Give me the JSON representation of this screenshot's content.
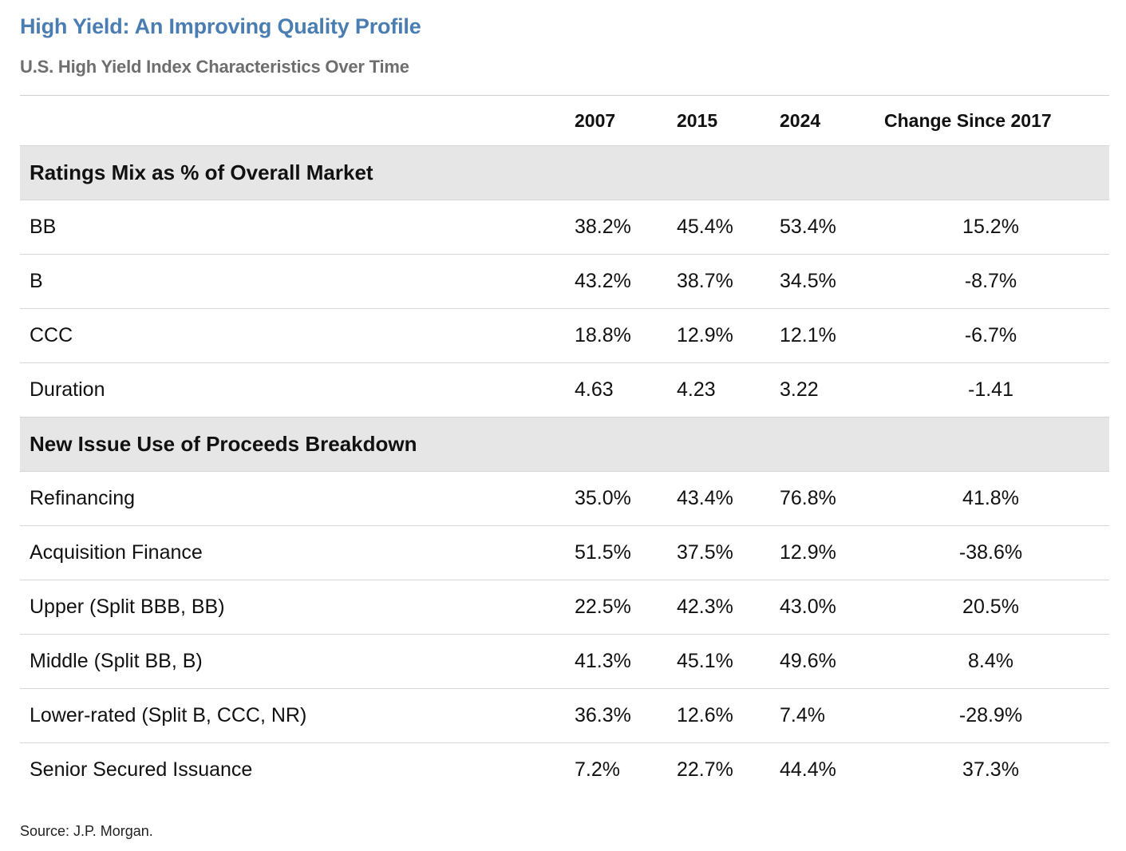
{
  "title": "High Yield: An Improving Quality Profile",
  "subtitle": "U.S. High Yield Index Characteristics Over Time",
  "source": "Source: J.P. Morgan.",
  "chart_data": {
    "type": "table",
    "columns": [
      "",
      "2007",
      "2015",
      "2024",
      "Change Since 2017"
    ],
    "sections": [
      {
        "title": "Ratings Mix as % of Overall Market",
        "rows": [
          {
            "label": "BB",
            "y2007": "38.2%",
            "y2015": "45.4%",
            "y2024": "53.4%",
            "change": "15.2%"
          },
          {
            "label": "B",
            "y2007": "43.2%",
            "y2015": "38.7%",
            "y2024": "34.5%",
            "change": "-8.7%"
          },
          {
            "label": "CCC",
            "y2007": "18.8%",
            "y2015": "12.9%",
            "y2024": "12.1%",
            "change": "-6.7%"
          },
          {
            "label": "Duration",
            "y2007": "4.63",
            "y2015": "4.23",
            "y2024": "3.22",
            "change": "-1.41"
          }
        ]
      },
      {
        "title": "New Issue Use of Proceeds Breakdown",
        "rows": [
          {
            "label": "Refinancing",
            "y2007": "35.0%",
            "y2015": "43.4%",
            "y2024": "76.8%",
            "change": "41.8%"
          },
          {
            "label": "Acquisition Finance",
            "y2007": "51.5%",
            "y2015": "37.5%",
            "y2024": "12.9%",
            "change": "-38.6%"
          },
          {
            "label": "Upper (Split BBB, BB)",
            "y2007": "22.5%",
            "y2015": "42.3%",
            "y2024": "43.0%",
            "change": "20.5%"
          },
          {
            "label": "Middle (Split BB, B)",
            "y2007": "41.3%",
            "y2015": "45.1%",
            "y2024": "49.6%",
            "change": "8.4%"
          },
          {
            "label": "Lower-rated (Split B, CCC, NR)",
            "y2007": "36.3%",
            "y2015": "12.6%",
            "y2024": "7.4%",
            "change": "-28.9%"
          },
          {
            "label": "Senior Secured Issuance",
            "y2007": "7.2%",
            "y2015": "22.7%",
            "y2024": "44.4%",
            "change": "37.3%"
          }
        ]
      }
    ]
  }
}
